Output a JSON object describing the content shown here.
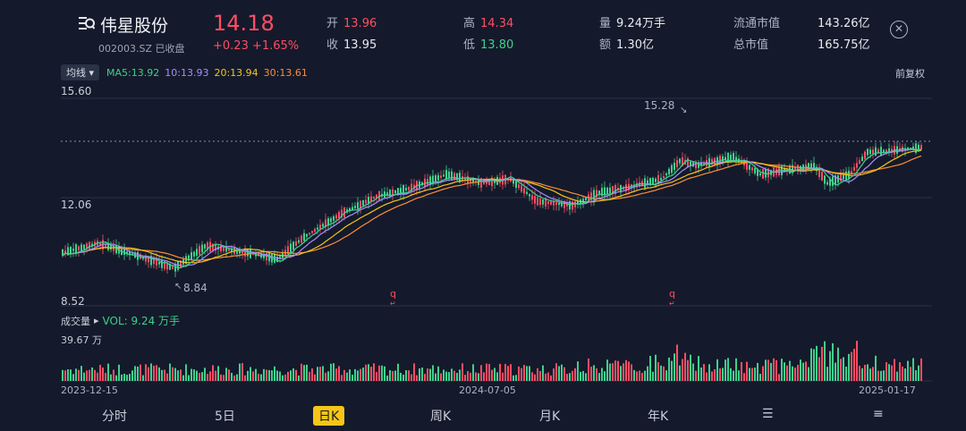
{
  "stock": {
    "name": "伟星股份",
    "code_status": "002003.SZ 已收盘",
    "price": "14.18",
    "change": "+0.23 +1.65%"
  },
  "quote": {
    "open_label": "开",
    "open": "13.96",
    "close_label": "收",
    "close": "13.95",
    "high_label": "高",
    "high": "14.34",
    "low_label": "低",
    "low": "13.80",
    "vol_label": "量",
    "vol": "9.24万手",
    "amt_label": "额",
    "amt": "1.30亿",
    "float_cap_label": "流通市值",
    "float_cap": "143.26亿",
    "total_cap_label": "总市值",
    "total_cap": "165.75亿"
  },
  "ma_bar": {
    "dropdown": "均线",
    "ma5": "MA5:13.92",
    "ma10": "10:13.93",
    "ma20": "20:13.94",
    "ma30": "30:13.61",
    "adjust": "前复权"
  },
  "price_axis": {
    "top": "15.60",
    "mid": "12.06",
    "bottom": "8.52"
  },
  "annotations": {
    "max": "15.28",
    "min": "8.84",
    "mark1": "q",
    "mark2": "q"
  },
  "volume_panel": {
    "title": "成交量",
    "vol_text": "VOL: 9.24 万手",
    "max_label": "39.67 万"
  },
  "dates": {
    "start": "2023-12-15",
    "mid": "2024-07-05",
    "end": "2025-01-17"
  },
  "tabs": [
    "分时",
    "5日",
    "日K",
    "周K",
    "月K",
    "年K"
  ],
  "active_tab": "日K",
  "colors": {
    "up": "#ff4d64",
    "down": "#3fd08c",
    "ma5": "#3fd08c",
    "ma10": "#a98bff",
    "ma20": "#f5c518",
    "ma30": "#ff8c3a",
    "background": "#141a2b"
  }
}
